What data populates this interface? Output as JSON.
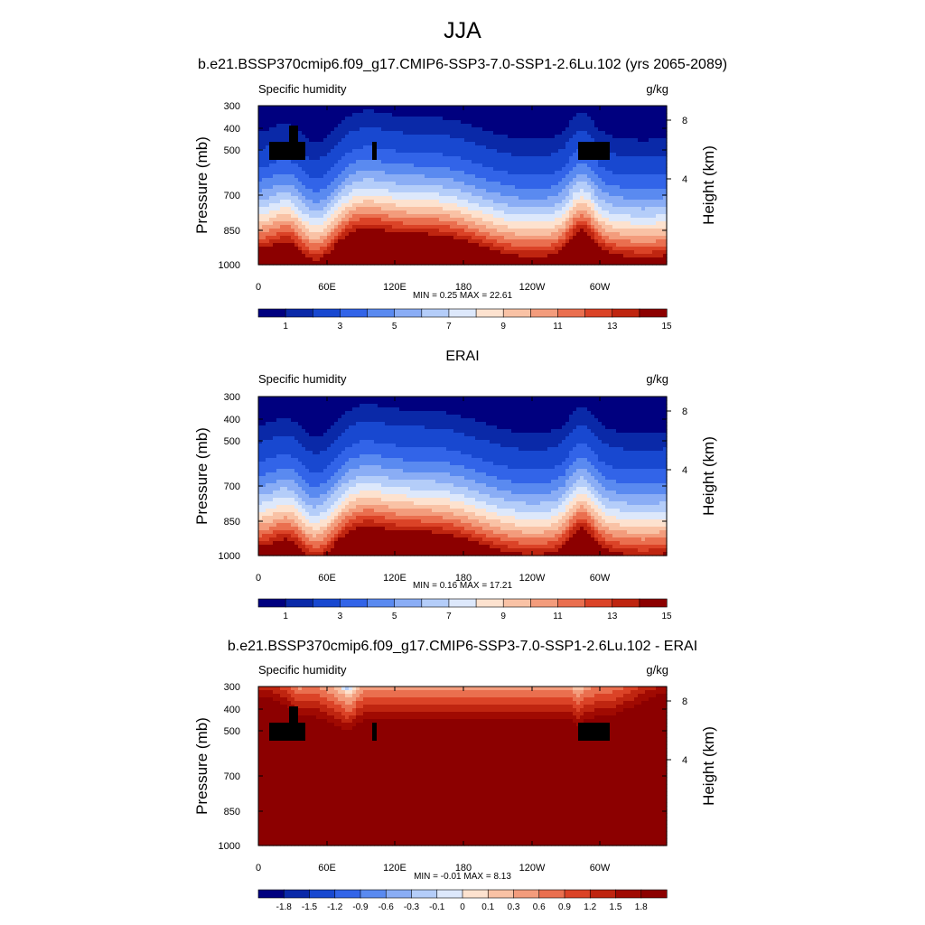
{
  "figure_title": "JJA",
  "chart_data": [
    {
      "type": "heatmap",
      "title": "b.e21.BSSP370cmip6.f09_g17.CMIP6-SSP3-7.0-SSP1-2.6Lu.102 (yrs 2065-2089)",
      "left_string": "Specific humidity",
      "units": "g/kg",
      "ylabel": "Pressure (mb)",
      "ylabel_right": "Height (km)",
      "x_ticks": [
        "0",
        "60E",
        "120E",
        "180",
        "120W",
        "60W"
      ],
      "y_ticks": [
        "300",
        "400",
        "500",
        "700",
        "850",
        "1000"
      ],
      "y_right_ticks": [
        "8",
        "4"
      ],
      "min_max": "MIN =   0.25  MAX =  22.61",
      "colorbar_labels": [
        "1",
        "3",
        "5",
        "7",
        "9",
        "11",
        "13",
        "15"
      ],
      "colors": [
        "#00007f",
        "#0a29a8",
        "#1848d0",
        "#3264e8",
        "#5a8af0",
        "#8aadf5",
        "#b4cdf9",
        "#dde8fb",
        "#fde2cf",
        "#f9c2a5",
        "#f39c7c",
        "#ea6f4f",
        "#db4327",
        "#bf2510",
        "#8c0000"
      ],
      "levels": [
        0.5,
        1,
        2,
        3,
        4,
        5,
        6,
        7,
        8,
        9,
        10,
        11,
        12,
        13,
        15
      ],
      "field": "moist_future",
      "min": 0.25,
      "max": 22.61
    },
    {
      "type": "heatmap",
      "title": "ERAI",
      "left_string": "Specific humidity",
      "units": "g/kg",
      "ylabel": "Pressure (mb)",
      "ylabel_right": "Height (km)",
      "x_ticks": [
        "0",
        "60E",
        "120E",
        "180",
        "120W",
        "60W"
      ],
      "y_ticks": [
        "300",
        "400",
        "500",
        "700",
        "850",
        "1000"
      ],
      "y_right_ticks": [
        "8",
        "4"
      ],
      "min_max": "MIN =   0.16  MAX =  17.21",
      "colorbar_labels": [
        "1",
        "3",
        "5",
        "7",
        "9",
        "11",
        "13",
        "15"
      ],
      "colors": [
        "#00007f",
        "#0a29a8",
        "#1848d0",
        "#3264e8",
        "#5a8af0",
        "#8aadf5",
        "#b4cdf9",
        "#dde8fb",
        "#fde2cf",
        "#f9c2a5",
        "#f39c7c",
        "#ea6f4f",
        "#db4327",
        "#bf2510",
        "#8c0000"
      ],
      "levels": [
        0.5,
        1,
        2,
        3,
        4,
        5,
        6,
        7,
        8,
        9,
        10,
        11,
        12,
        13,
        15
      ],
      "field": "moist_obs",
      "min": 0.16,
      "max": 17.21
    },
    {
      "type": "heatmap",
      "title": "b.e21.BSSP370cmip6.f09_g17.CMIP6-SSP3-7.0-SSP1-2.6Lu.102 - ERAI",
      "left_string": "Specific humidity",
      "units": "g/kg",
      "ylabel": "Pressure (mb)",
      "ylabel_right": "Height (km)",
      "x_ticks": [
        "0",
        "60E",
        "120E",
        "180",
        "120W",
        "60W"
      ],
      "y_ticks": [
        "300",
        "400",
        "500",
        "700",
        "850",
        "1000"
      ],
      "y_right_ticks": [
        "8",
        "4"
      ],
      "min_max": "MIN =  -0.01  MAX =   8.13",
      "colorbar_labels": [
        "-1.8",
        "-1.5",
        "-1.2",
        "-0.9",
        "-0.6",
        "-0.3",
        "-0.1",
        "0",
        "0.1",
        "0.3",
        "0.6",
        "0.9",
        "1.2",
        "1.5",
        "1.8"
      ],
      "colors": [
        "#00007f",
        "#0a29a8",
        "#1848d0",
        "#3264e8",
        "#5a8af0",
        "#8aadf5",
        "#b4cdf9",
        "#dde8fb",
        "#fde2cf",
        "#f9c2a5",
        "#f39c7c",
        "#ea6f4f",
        "#db4327",
        "#bf2510",
        "#a00a02",
        "#8c0000"
      ],
      "levels": [
        -1.8,
        -1.5,
        -1.2,
        -0.9,
        -0.6,
        -0.3,
        -0.1,
        0,
        0.1,
        0.3,
        0.6,
        0.9,
        1.2,
        1.5,
        1.8
      ],
      "field": "diff",
      "min": -0.01,
      "max": 8.13
    }
  ]
}
